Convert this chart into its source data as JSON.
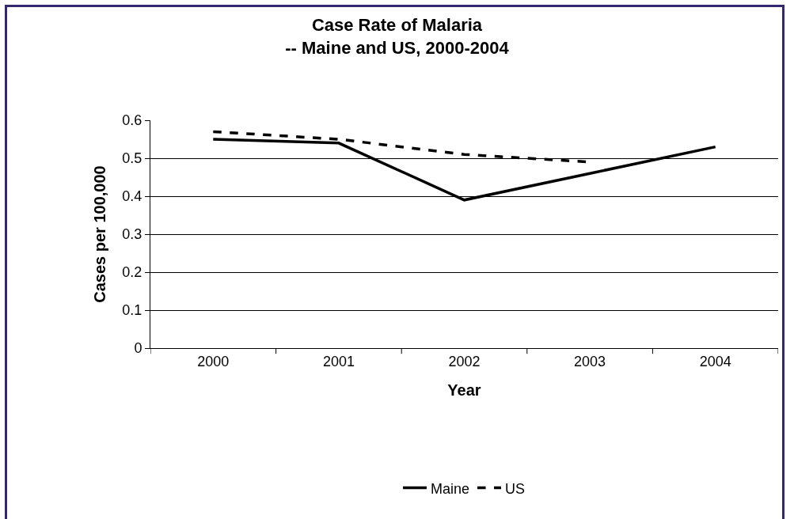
{
  "chart_data": {
    "type": "line",
    "title": "Case Rate of Malaria\n-- Maine and US, 2000-2004",
    "xlabel": "Year",
    "ylabel": "Cases per 100,000",
    "categories": [
      "2000",
      "2001",
      "2002",
      "2003",
      "2004"
    ],
    "series": [
      {
        "name": "Maine",
        "color": "#000000",
        "line_style": "solid",
        "values": [
          0.55,
          0.54,
          0.39,
          0.46,
          0.53
        ]
      },
      {
        "name": "US",
        "color": "#000000",
        "line_style": "dashed",
        "values": [
          0.57,
          0.55,
          0.51,
          0.49,
          null
        ]
      }
    ],
    "ylim": [
      0,
      0.6
    ],
    "yticks": [
      0,
      0.1,
      0.2,
      0.3,
      0.4,
      0.5,
      0.6
    ],
    "grid": "y",
    "legend": "bottom",
    "marker": "none"
  }
}
